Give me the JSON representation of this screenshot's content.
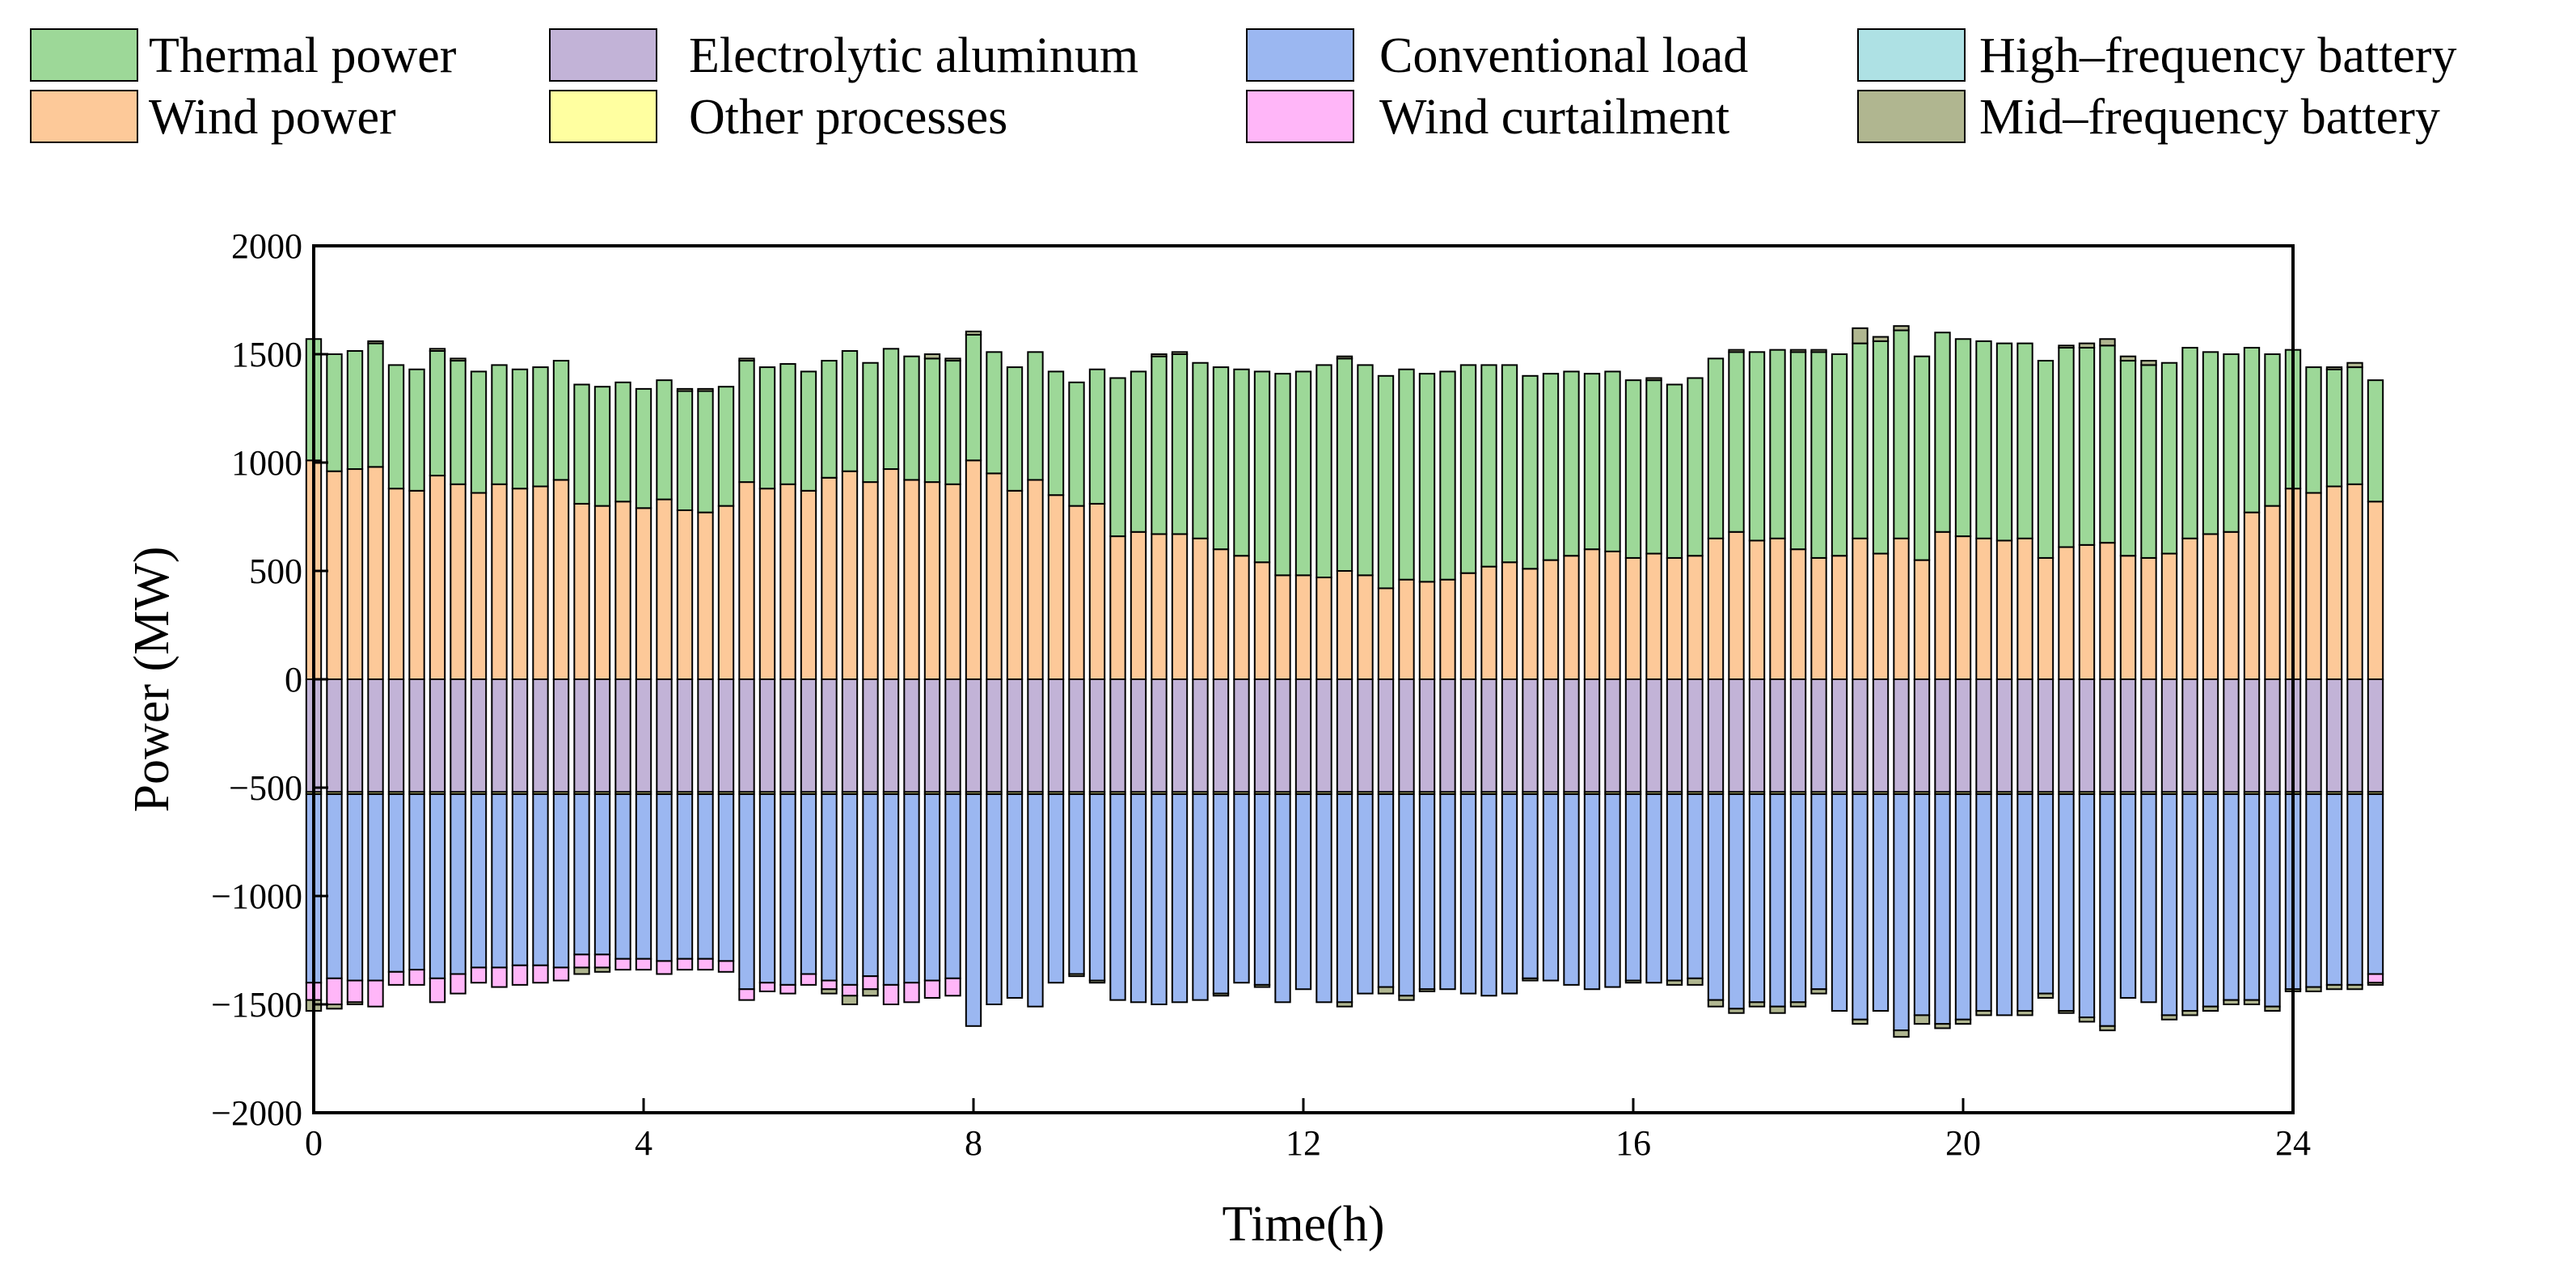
{
  "chart_data": {
    "type": "bar",
    "stacked": true,
    "title": "",
    "xlabel": "Time(h)",
    "ylabel": "Power (MW)",
    "xlim": [
      0,
      24
    ],
    "ylim": [
      -2000,
      2000
    ],
    "x_ticks": [
      0,
      4,
      8,
      12,
      16,
      20,
      24
    ],
    "y_ticks": [
      -2000,
      -1500,
      -1000,
      -500,
      0,
      500,
      1000,
      1500,
      2000
    ],
    "interval_h": 0.25,
    "legend": [
      {
        "key": "thermal",
        "label": "Thermal power",
        "color": "#9DD898"
      },
      {
        "key": "wind",
        "label": "Wind power",
        "color": "#FDC999"
      },
      {
        "key": "alu",
        "label": "Electrolytic aluminum",
        "color": "#C2B3D7"
      },
      {
        "key": "other",
        "label": "Other processes",
        "color": "#FFFFA0"
      },
      {
        "key": "conv",
        "label": "Conventional load",
        "color": "#9BB7F1"
      },
      {
        "key": "curt",
        "label": "Wind curtailment",
        "color": "#FFB6F8"
      },
      {
        "key": "hfb",
        "label": "High–frequency battery",
        "color": "#AEE1E4"
      },
      {
        "key": "mfb",
        "label": "Mid–frequency battery",
        "color": "#B0B690"
      }
    ],
    "series": [
      {
        "key": "wind",
        "name": "Wind power",
        "values": [
          1010,
          960,
          970,
          980,
          880,
          870,
          940,
          900,
          860,
          900,
          880,
          890,
          920,
          810,
          800,
          820,
          790,
          830,
          780,
          770,
          800,
          910,
          880,
          900,
          870,
          930,
          960,
          910,
          970,
          920,
          910,
          900,
          1010,
          950,
          870,
          920,
          850,
          800,
          810,
          660,
          680,
          670,
          670,
          650,
          600,
          570,
          540,
          480,
          480,
          470,
          500,
          480,
          420,
          460,
          450,
          460,
          490,
          520,
          540,
          510,
          550,
          570,
          600,
          590,
          560,
          580,
          560,
          570,
          650,
          680,
          640,
          650,
          600,
          560,
          570,
          650,
          580,
          650,
          550,
          680,
          660,
          650,
          640,
          650,
          560,
          610,
          620,
          630,
          570,
          560,
          580,
          650,
          670,
          680,
          770,
          800,
          880,
          860,
          890,
          900,
          820
        ]
      },
      {
        "key": "thermal",
        "name": "Thermal power",
        "values": [
          560,
          540,
          545,
          570,
          570,
          560,
          575,
          570,
          560,
          550,
          550,
          550,
          550,
          550,
          550,
          550,
          550,
          550,
          550,
          560,
          550,
          560,
          560,
          555,
          550,
          540,
          555,
          550,
          555,
          570,
          570,
          570,
          580,
          560,
          570,
          590,
          570,
          570,
          620,
          730,
          740,
          820,
          830,
          810,
          840,
          860,
          880,
          930,
          940,
          980,
          980,
          970,
          980,
          970,
          960,
          960,
          960,
          930,
          910,
          890,
          860,
          850,
          810,
          830,
          820,
          800,
          800,
          820,
          830,
          830,
          870,
          870,
          910,
          950,
          930,
          900,
          980,
          960,
          940,
          920,
          910,
          910,
          910,
          900,
          910,
          920,
          910,
          910,
          900,
          890,
          880,
          880,
          840,
          820,
          760,
          700,
          640,
          580,
          540,
          540,
          560
        ]
      },
      {
        "key": "hfb",
        "name": "High–frequency battery",
        "values": [
          0,
          0,
          0,
          0,
          0,
          0,
          0,
          0,
          0,
          0,
          0,
          0,
          0,
          0,
          0,
          0,
          0,
          0,
          0,
          0,
          0,
          0,
          0,
          0,
          0,
          0,
          0,
          0,
          0,
          0,
          0,
          0,
          0,
          0,
          0,
          0,
          0,
          0,
          0,
          0,
          0,
          0,
          0,
          0,
          0,
          0,
          0,
          0,
          0,
          0,
          0,
          0,
          0,
          0,
          0,
          0,
          0,
          0,
          0,
          0,
          0,
          0,
          0,
          0,
          0,
          0,
          0,
          0,
          0,
          0,
          0,
          0,
          0,
          0,
          0,
          0,
          0,
          0,
          0,
          0,
          0,
          0,
          0,
          0,
          0,
          0,
          0,
          0,
          0,
          0,
          0,
          0,
          0,
          0,
          0,
          0,
          0,
          0,
          0,
          0,
          0
        ]
      },
      {
        "key": "mfb_pos",
        "name": "Mid–frequency battery (discharge)",
        "values": [
          0,
          0,
          0,
          10,
          0,
          0,
          10,
          10,
          0,
          0,
          0,
          0,
          0,
          0,
          0,
          0,
          0,
          0,
          10,
          10,
          0,
          10,
          0,
          0,
          0,
          0,
          0,
          0,
          0,
          0,
          20,
          10,
          15,
          0,
          0,
          0,
          0,
          0,
          0,
          0,
          0,
          10,
          10,
          0,
          0,
          0,
          0,
          0,
          0,
          0,
          10,
          0,
          0,
          0,
          0,
          0,
          0,
          0,
          0,
          0,
          0,
          0,
          0,
          0,
          0,
          10,
          0,
          0,
          0,
          10,
          0,
          0,
          10,
          10,
          0,
          70,
          20,
          20,
          0,
          0,
          0,
          0,
          0,
          0,
          0,
          10,
          20,
          30,
          20,
          20,
          0,
          0,
          0,
          0,
          0,
          0,
          0,
          0,
          10,
          20,
          0
        ]
      },
      {
        "key": "alu",
        "name": "Electrolytic aluminum",
        "values": [
          -520,
          -520,
          -520,
          -520,
          -520,
          -520,
          -520,
          -520,
          -520,
          -520,
          -520,
          -520,
          -520,
          -520,
          -520,
          -520,
          -520,
          -520,
          -520,
          -520,
          -520,
          -520,
          -520,
          -520,
          -520,
          -520,
          -520,
          -520,
          -520,
          -520,
          -520,
          -520,
          -520,
          -520,
          -520,
          -520,
          -520,
          -520,
          -520,
          -520,
          -520,
          -520,
          -520,
          -520,
          -520,
          -520,
          -520,
          -520,
          -520,
          -520,
          -520,
          -520,
          -520,
          -520,
          -520,
          -520,
          -520,
          -520,
          -520,
          -520,
          -520,
          -520,
          -520,
          -520,
          -520,
          -520,
          -520,
          -520,
          -520,
          -520,
          -520,
          -520,
          -520,
          -520,
          -520,
          -520,
          -520,
          -520,
          -520,
          -520,
          -520,
          -520,
          -520,
          -520,
          -520,
          -520,
          -520,
          -520,
          -520,
          -520,
          -520,
          -520,
          -520,
          -520,
          -520,
          -520,
          -520,
          -520,
          -520,
          -520,
          -520
        ]
      },
      {
        "key": "other",
        "name": "Other processes",
        "values": [
          -10,
          -10,
          -10,
          -10,
          -10,
          -10,
          -10,
          -10,
          -10,
          -10,
          -10,
          -10,
          -10,
          -10,
          -10,
          -10,
          -10,
          -10,
          -10,
          -10,
          -10,
          -10,
          -10,
          -10,
          -10,
          -10,
          -10,
          -10,
          -10,
          -10,
          -10,
          -10,
          -10,
          -10,
          -10,
          -10,
          -10,
          -10,
          -10,
          -10,
          -10,
          -10,
          -10,
          -10,
          -10,
          -10,
          -10,
          -10,
          -10,
          -10,
          -10,
          -10,
          -10,
          -10,
          -10,
          -10,
          -10,
          -10,
          -10,
          -10,
          -10,
          -10,
          -10,
          -10,
          -10,
          -10,
          -10,
          -10,
          -10,
          -10,
          -10,
          -10,
          -10,
          -10,
          -10,
          -10,
          -10,
          -10,
          -10,
          -10,
          -10,
          -10,
          -10,
          -10,
          -10,
          -10,
          -10,
          -10,
          -10,
          -10,
          -10,
          -10,
          -10,
          -10,
          -10,
          -10,
          -10,
          -10,
          -10,
          -10,
          -10
        ]
      },
      {
        "key": "conv",
        "name": "Conventional load",
        "values": [
          -870,
          -850,
          -860,
          -860,
          -820,
          -810,
          -850,
          -830,
          -800,
          -800,
          -790,
          -790,
          -800,
          -740,
          -740,
          -760,
          -760,
          -770,
          -760,
          -760,
          -770,
          -900,
          -870,
          -880,
          -830,
          -860,
          -880,
          -840,
          -880,
          -870,
          -860,
          -850,
          -1070,
          -970,
          -940,
          -980,
          -870,
          -830,
          -860,
          -950,
          -960,
          -970,
          -960,
          -950,
          -920,
          -870,
          -880,
          -960,
          -900,
          -960,
          -960,
          -920,
          -890,
          -930,
          -900,
          -900,
          -920,
          -930,
          -920,
          -850,
          -860,
          -880,
          -900,
          -890,
          -860,
          -870,
          -860,
          -850,
          -950,
          -990,
          -960,
          -980,
          -960,
          -900,
          -1000,
          -1040,
          -1000,
          -1090,
          -1020,
          -1060,
          -1040,
          -1000,
          -1020,
          -1000,
          -920,
          -1000,
          -1030,
          -1070,
          -940,
          -960,
          -1020,
          -1000,
          -980,
          -950,
          -950,
          -980,
          -900,
          -890,
          -880,
          -880,
          -830
        ]
      },
      {
        "key": "curt",
        "name": "Wind curtailment",
        "values": [
          -80,
          -120,
          -100,
          -120,
          -60,
          -70,
          -110,
          -90,
          -70,
          -90,
          -90,
          -80,
          -60,
          -60,
          -60,
          -50,
          -50,
          -60,
          -50,
          -50,
          -50,
          -50,
          -40,
          -40,
          -50,
          -40,
          -50,
          -60,
          -90,
          -90,
          -80,
          -80,
          0,
          0,
          0,
          0,
          0,
          0,
          0,
          0,
          0,
          0,
          0,
          0,
          0,
          0,
          0,
          0,
          0,
          0,
          0,
          0,
          0,
          0,
          0,
          0,
          0,
          0,
          0,
          0,
          0,
          0,
          0,
          0,
          0,
          0,
          0,
          0,
          0,
          0,
          0,
          0,
          0,
          0,
          0,
          0,
          0,
          0,
          0,
          0,
          0,
          0,
          0,
          0,
          0,
          0,
          0,
          0,
          0,
          0,
          0,
          0,
          0,
          0,
          0,
          0,
          0,
          0,
          0,
          0,
          -40
        ]
      },
      {
        "key": "mfb_neg",
        "name": "Mid–frequency battery (charge)",
        "values": [
          -50,
          -20,
          -10,
          0,
          0,
          0,
          0,
          0,
          0,
          0,
          0,
          0,
          0,
          -30,
          -20,
          0,
          0,
          0,
          0,
          0,
          0,
          0,
          0,
          0,
          0,
          -20,
          -40,
          -30,
          0,
          0,
          0,
          0,
          0,
          0,
          0,
          0,
          0,
          -10,
          -10,
          0,
          0,
          0,
          0,
          0,
          -10,
          0,
          -10,
          0,
          0,
          0,
          -20,
          0,
          -30,
          -20,
          -10,
          0,
          0,
          0,
          0,
          -10,
          0,
          0,
          0,
          0,
          -10,
          0,
          -20,
          -30,
          -30,
          -20,
          -20,
          -30,
          -20,
          -20,
          0,
          -20,
          0,
          -30,
          -40,
          -20,
          -20,
          -20,
          0,
          -20,
          -20,
          -10,
          -20,
          -20,
          0,
          0,
          -20,
          -20,
          -20,
          -20,
          -20,
          -20,
          -10,
          -20,
          -20,
          -20,
          -10
        ]
      }
    ]
  }
}
